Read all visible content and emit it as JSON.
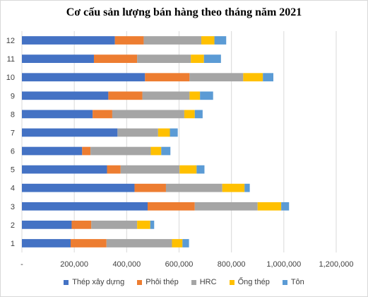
{
  "chart_data": {
    "type": "bar",
    "orientation": "horizontal",
    "stacked": true,
    "title": "Cơ cấu sản lượng bán hàng theo tháng năm 2021",
    "categories": [
      "1",
      "2",
      "3",
      "4",
      "5",
      "6",
      "7",
      "8",
      "9",
      "10",
      "11",
      "12"
    ],
    "x_ticks": [
      "-",
      "200,000",
      "400,000",
      "600,000",
      "800,000",
      "1,000,000",
      "1,200,000"
    ],
    "xlim": [
      0,
      1200000
    ],
    "grid": true,
    "legend_position": "bottom",
    "series": [
      {
        "name": "Thép xây dựng",
        "color": "#4472C4",
        "values": [
          186000,
          190000,
          480000,
          430000,
          325000,
          230000,
          365000,
          270000,
          330000,
          470000,
          275000,
          355000
        ]
      },
      {
        "name": "Phôi thép",
        "color": "#ED7D31",
        "values": [
          137000,
          75000,
          180000,
          120000,
          52000,
          32000,
          0,
          75000,
          130000,
          170000,
          165000,
          110000
        ]
      },
      {
        "name": "HRC",
        "color": "#A5A5A5",
        "values": [
          250000,
          175000,
          240000,
          215000,
          225000,
          230000,
          155000,
          275000,
          180000,
          205000,
          205000,
          220000
        ]
      },
      {
        "name": "Ống thép",
        "color": "#FFC000",
        "values": [
          40000,
          50000,
          90000,
          85000,
          65000,
          40000,
          45000,
          40000,
          40000,
          75000,
          50000,
          50000
        ]
      },
      {
        "name": "Tôn",
        "color": "#5B9BD5",
        "values": [
          25000,
          15000,
          30000,
          20000,
          30000,
          35000,
          30000,
          30000,
          50000,
          40000,
          65000,
          45000
        ]
      }
    ]
  }
}
